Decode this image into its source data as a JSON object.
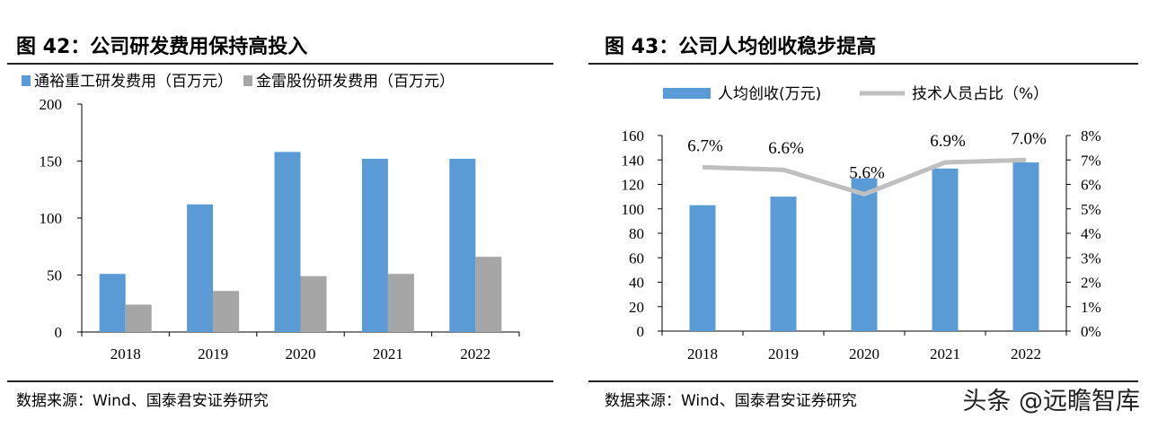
{
  "left_panel": {
    "title": "图 42：公司研发费用保持高投入",
    "source": "数据来源：Wind、国泰君安证券研究"
  },
  "right_panel": {
    "title": "图 43：公司人均创收稳步提高",
    "source": "数据来源：Wind、国泰君安证券研究"
  },
  "watermark": "头条 @远瞻智库",
  "chart_data": [
    {
      "type": "bar",
      "categories": [
        "2018",
        "2019",
        "2020",
        "2021",
        "2022"
      ],
      "series": [
        {
          "name": "通裕重工研发费用（百万元）",
          "color": "#5b9bd5",
          "values": [
            51,
            112,
            158,
            152,
            152
          ]
        },
        {
          "name": "金雷股份研发费用（百万元）",
          "color": "#a6a6a6",
          "values": [
            24,
            36,
            49,
            51,
            66
          ]
        }
      ],
      "ylim": [
        0,
        200
      ],
      "yticks": [
        0,
        50,
        100,
        150,
        200
      ],
      "legend": "top-left",
      "grid": false
    },
    {
      "type": "bar",
      "categories": [
        "2018",
        "2019",
        "2020",
        "2021",
        "2022"
      ],
      "series": [
        {
          "name": "人均创收(万元)",
          "type": "bar",
          "axis": "left",
          "color": "#5b9bd5",
          "values": [
            103,
            110,
            125,
            133,
            138
          ]
        },
        {
          "name": "技术人员占比（%）",
          "type": "line",
          "axis": "right",
          "color": "#bfbfbf",
          "values": [
            6.7,
            6.6,
            5.6,
            6.9,
            7.0
          ],
          "labels": [
            "6.7%",
            "6.6%",
            "5.6%",
            "6.9%",
            "7.0%"
          ]
        }
      ],
      "ylim": [
        0,
        160
      ],
      "yticks": [
        0,
        20,
        40,
        60,
        80,
        100,
        120,
        140,
        160
      ],
      "y2lim": [
        0,
        8
      ],
      "y2ticks": [
        "0%",
        "1%",
        "2%",
        "3%",
        "4%",
        "5%",
        "6%",
        "7%",
        "8%"
      ],
      "legend": "top-center",
      "grid": false
    }
  ]
}
